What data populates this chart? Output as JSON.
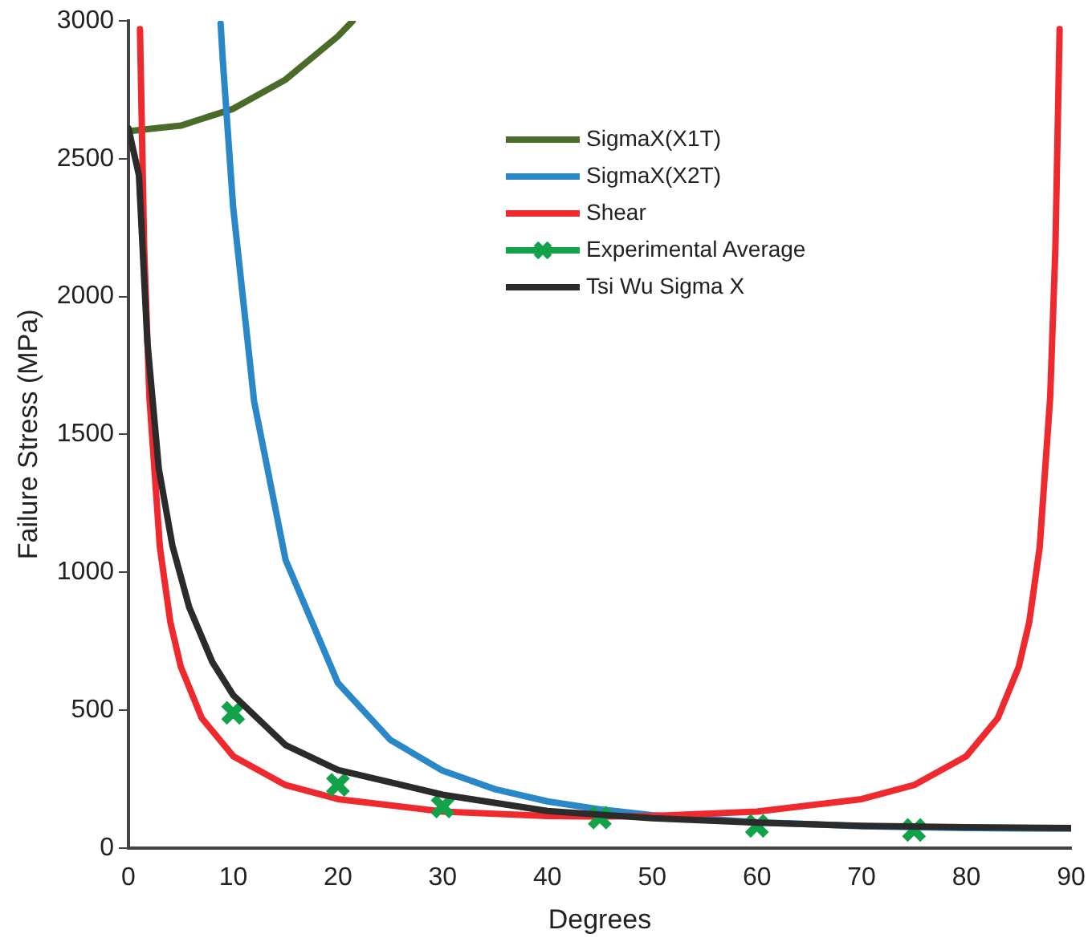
{
  "chart_data": {
    "type": "line",
    "xlabel": "Degrees",
    "ylabel": "Failure Stress (MPa)",
    "xlim": [
      0,
      90
    ],
    "xticks": [
      0,
      10,
      20,
      30,
      40,
      50,
      60,
      70,
      80,
      90
    ],
    "ylim": [
      0,
      3000
    ],
    "yticks": [
      0,
      500,
      1000,
      1500,
      2000,
      2500,
      3000
    ],
    "grid": false,
    "legend": "top right",
    "marker": "none",
    "line_style": "solid",
    "series": [
      {
        "name": "SigmaX(X1T)",
        "color": "#4a6b2a",
        "x": [
          0,
          5,
          10,
          15,
          20,
          21.4
        ],
        "values": [
          2600,
          2620,
          2681,
          2787,
          2944,
          2999
        ]
      },
      {
        "name": "SigmaX(X2T)",
        "color": "#2a88c8",
        "x": [
          8.8,
          9,
          10,
          12,
          15,
          20,
          25,
          30,
          35,
          40,
          45,
          50,
          60,
          70,
          80,
          90
        ],
        "values": [
          2990,
          2861,
          2322,
          1619,
          1045,
          598,
          392,
          280,
          213,
          169,
          140,
          119,
          93,
          79,
          72,
          70
        ]
      },
      {
        "name": "Shear",
        "color": "#ee2a2f",
        "x": [
          1.1,
          1.5,
          2,
          3,
          4,
          5,
          7,
          10,
          15,
          20,
          30,
          40,
          45,
          50,
          60,
          70,
          75,
          80,
          83,
          85,
          86,
          87,
          88,
          88.5,
          88.9
        ],
        "values": [
          2970,
          2178,
          1634,
          1091,
          819,
          657,
          471,
          333,
          228,
          177,
          132,
          116,
          114,
          116,
          132,
          177,
          228,
          333,
          471,
          657,
          819,
          1091,
          1634,
          2178,
          2970
        ]
      },
      {
        "name": "Experimental Average",
        "type": "scatter",
        "marker": "cross",
        "color": "#12a24a",
        "x": [
          10,
          20,
          30,
          45,
          60,
          75
        ],
        "values": [
          490,
          229,
          150,
          110,
          80,
          65
        ]
      },
      {
        "name": "Tsi Wu Sigma X",
        "color": "#2b2b2b",
        "x": [
          0,
          1,
          1.8,
          2.9,
          4.2,
          5.8,
          8,
          10,
          15,
          20,
          30,
          40,
          50,
          60,
          70,
          80,
          90
        ],
        "values": [
          2610,
          2440,
          1837,
          1375,
          1096,
          873,
          675,
          554,
          373,
          283,
          193,
          134,
          108,
          92,
          80,
          75,
          72
        ]
      }
    ]
  }
}
